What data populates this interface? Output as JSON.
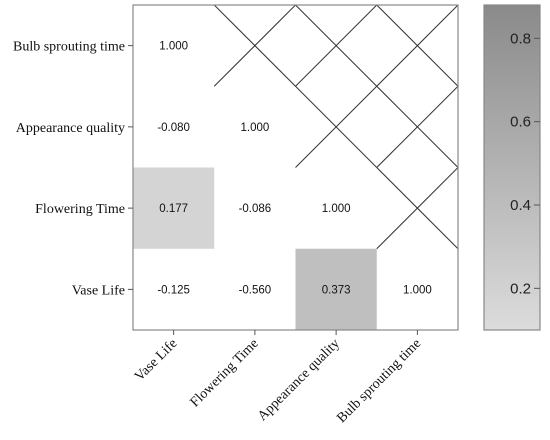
{
  "chart_data": {
    "type": "heatmap",
    "title": "",
    "xlabel": "",
    "ylabel": "",
    "rows": [
      "Bulb sprouting time",
      "Appearance quality",
      "Flowering Time",
      "Vase Life"
    ],
    "columns": [
      "Vase Life",
      "Flowering Time",
      "Appearance quality",
      "Bulb sprouting time"
    ],
    "cells": [
      {
        "row": 0,
        "col": 0,
        "value": 1.0,
        "label": "1.000",
        "shaded": false
      },
      {
        "row": 1,
        "col": 0,
        "value": -0.08,
        "label": "-0.080",
        "shaded": false
      },
      {
        "row": 1,
        "col": 1,
        "value": 1.0,
        "label": "1.000",
        "shaded": false
      },
      {
        "row": 2,
        "col": 0,
        "value": 0.177,
        "label": "0.177",
        "shaded": true
      },
      {
        "row": 2,
        "col": 1,
        "value": -0.086,
        "label": "-0.086",
        "shaded": false
      },
      {
        "row": 2,
        "col": 2,
        "value": 1.0,
        "label": "1.000",
        "shaded": false
      },
      {
        "row": 3,
        "col": 0,
        "value": -0.125,
        "label": "-0.125",
        "shaded": false
      },
      {
        "row": 3,
        "col": 1,
        "value": -0.56,
        "label": "-0.560",
        "shaded": false
      },
      {
        "row": 3,
        "col": 2,
        "value": 0.373,
        "label": "0.373",
        "shaded": true
      },
      {
        "row": 3,
        "col": 3,
        "value": 1.0,
        "label": "1.000",
        "shaded": false
      }
    ],
    "crossed_out_cells": [
      {
        "row": 0,
        "col": 1
      },
      {
        "row": 0,
        "col": 2
      },
      {
        "row": 0,
        "col": 3
      },
      {
        "row": 1,
        "col": 2
      },
      {
        "row": 1,
        "col": 3
      },
      {
        "row": 2,
        "col": 3
      }
    ],
    "colorbar": {
      "range": [
        0.1,
        0.88
      ],
      "ticks": [
        0.2,
        0.4,
        0.6,
        0.8
      ],
      "tick_labels": [
        "0.2",
        "0.4",
        "0.6",
        "0.8"
      ],
      "color_low": "#dcdcdc",
      "color_high": "#8a8a8a",
      "placement": "right"
    },
    "grid": false
  }
}
